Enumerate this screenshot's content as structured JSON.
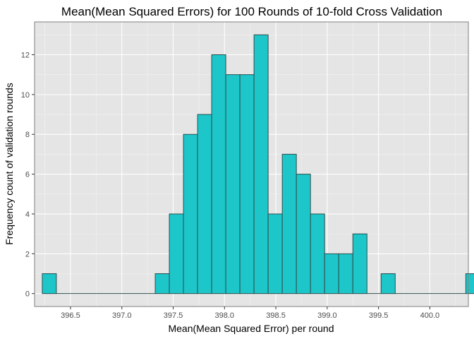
{
  "chart_data": {
    "type": "bar",
    "title": "Mean(Mean Squared Errors) for 100 Rounds of 10-fold Cross Validation",
    "xlabel": "Mean(Mean Squared Error) per round",
    "ylabel": "Frequency count of validation rounds",
    "xlim": [
      396.15,
      400.375
    ],
    "ylim": [
      -0.65,
      13.65
    ],
    "x_ticks": [
      396.5,
      397.0,
      397.5,
      398.0,
      398.5,
      399.0,
      399.5,
      400.0
    ],
    "x_tick_labels": [
      "396.5",
      "397.0",
      "397.5",
      "398.0",
      "398.5",
      "399.0",
      "399.5",
      "400.0"
    ],
    "y_ticks": [
      0,
      2,
      4,
      6,
      8,
      10,
      12
    ],
    "y_tick_labels": [
      "0",
      "2",
      "4",
      "6",
      "8",
      "10",
      "12"
    ],
    "bin_start": 396.225,
    "bin_width": 0.1375,
    "values": [
      1,
      0,
      0,
      0,
      0,
      0,
      0,
      0,
      1,
      4,
      8,
      9,
      12,
      11,
      11,
      13,
      4,
      7,
      6,
      4,
      2,
      2,
      3,
      0,
      1,
      0,
      0,
      0,
      0,
      0,
      1
    ],
    "grid": true,
    "panel_background": "#e5e5e5",
    "bar_fill": "#1cc6c9",
    "bar_stroke": "#2f4f4f"
  }
}
